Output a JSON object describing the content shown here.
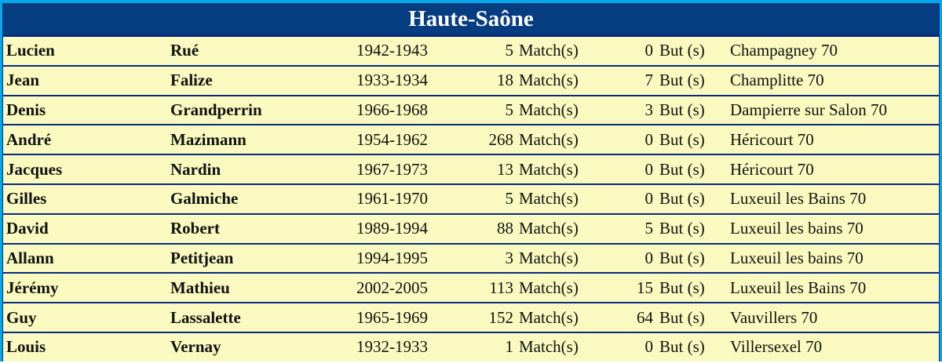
{
  "title": "Haute-Saône",
  "colors": {
    "header_bg": "#063c80",
    "row_bg": "#fafac0",
    "border": "#0a2c80",
    "outer": "#08a8e8"
  },
  "rows": [
    {
      "first": "Lucien",
      "last": "Rué",
      "years": "1942-1943",
      "matches": "5",
      "matches_label": "Match(s)",
      "goals": "0",
      "goals_label": "But (s)",
      "city": "Champagney 70"
    },
    {
      "first": "Jean",
      "last": "Falize",
      "years": "1933-1934",
      "matches": "18",
      "matches_label": "Match(s)",
      "goals": "7",
      "goals_label": "But (s)",
      "city": "Champlitte 70"
    },
    {
      "first": "Denis",
      "last": "Grandperrin",
      "years": "1966-1968",
      "matches": "5",
      "matches_label": "Match(s)",
      "goals": "3",
      "goals_label": "But (s)",
      "city": "Dampierre sur Salon 70"
    },
    {
      "first": "André",
      "last": "Mazimann",
      "years": "1954-1962",
      "matches": "268",
      "matches_label": "Match(s)",
      "goals": "0",
      "goals_label": "But (s)",
      "city": "Héricourt 70"
    },
    {
      "first": "Jacques",
      "last": "Nardin",
      "years": "1967-1973",
      "matches": "13",
      "matches_label": "Match(s)",
      "goals": "0",
      "goals_label": "But (s)",
      "city": "Héricourt 70"
    },
    {
      "first": "Gilles",
      "last": "Galmiche",
      "years": "1961-1970",
      "matches": "5",
      "matches_label": "Match(s)",
      "goals": "0",
      "goals_label": "But (s)",
      "city": "Luxeuil les Bains 70"
    },
    {
      "first": "David",
      "last": "Robert",
      "years": "1989-1994",
      "matches": "88",
      "matches_label": "Match(s)",
      "goals": "5",
      "goals_label": "But (s)",
      "city": "Luxeuil les bains 70"
    },
    {
      "first": "Allann",
      "last": "Petitjean",
      "years": "1994-1995",
      "matches": "3",
      "matches_label": "Match(s)",
      "goals": "0",
      "goals_label": "But (s)",
      "city": "Luxeuil les bains 70"
    },
    {
      "first": "Jérémy",
      "last": "Mathieu",
      "years": "2002-2005",
      "matches": "113",
      "matches_label": "Match(s)",
      "goals": "15",
      "goals_label": "But (s)",
      "city": "Luxeuil les Bains 70"
    },
    {
      "first": "Guy",
      "last": "Lassalette",
      "years": "1965-1969",
      "matches": "152",
      "matches_label": "Match(s)",
      "goals": "64",
      "goals_label": "But (s)",
      "city": "Vauvillers 70"
    },
    {
      "first": "Louis",
      "last": "Vernay",
      "years": "1932-1933",
      "matches": "1",
      "matches_label": "Match(s)",
      "goals": "0",
      "goals_label": "But (s)",
      "city": "Villersexel 70"
    }
  ]
}
